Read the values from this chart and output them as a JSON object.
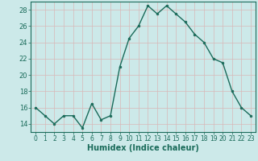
{
  "x": [
    0,
    1,
    2,
    3,
    4,
    5,
    6,
    7,
    8,
    9,
    10,
    11,
    12,
    13,
    14,
    15,
    16,
    17,
    18,
    19,
    20,
    21,
    22,
    23
  ],
  "y": [
    16,
    15,
    14,
    15,
    15,
    13.5,
    16.5,
    14.5,
    15,
    21,
    24.5,
    26,
    28.5,
    27.5,
    28.5,
    27.5,
    26.5,
    25,
    24,
    22,
    21.5,
    18,
    16,
    15
  ],
  "line_color": "#1a6b5a",
  "marker_color": "#1a6b5a",
  "bg_color": "#cce9e9",
  "grid_color": "#c0dada",
  "xlabel": "Humidex (Indice chaleur)",
  "xlabel_fontsize": 7,
  "tick_fontsize": 6,
  "ylim": [
    13,
    29
  ],
  "yticks": [
    14,
    16,
    18,
    20,
    22,
    24,
    26,
    28
  ],
  "xlim": [
    -0.5,
    23.5
  ],
  "xticks": [
    0,
    1,
    2,
    3,
    4,
    5,
    6,
    7,
    8,
    9,
    10,
    11,
    12,
    13,
    14,
    15,
    16,
    17,
    18,
    19,
    20,
    21,
    22,
    23
  ]
}
